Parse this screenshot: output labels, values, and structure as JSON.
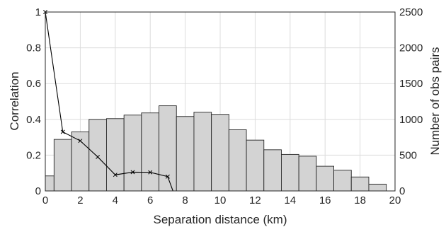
{
  "chart_data": {
    "type": "bar+line",
    "xlabel": "Separation distance (km)",
    "ylabel_left": "Correlation",
    "ylabel_right": "Number of obs pairs",
    "xlim": [
      0,
      20
    ],
    "ylim_left": [
      0,
      1
    ],
    "ylim_right": [
      0,
      2500
    ],
    "xticks": [
      0,
      2,
      4,
      6,
      8,
      10,
      12,
      14,
      16,
      18,
      20
    ],
    "yticks_left": [
      0,
      0.2,
      0.4,
      0.6,
      0.8,
      1
    ],
    "yticks_right": [
      0,
      500,
      1000,
      1500,
      2000,
      2500
    ],
    "grid": true,
    "bars": {
      "axis": "right",
      "bin_width": 1,
      "bin_centers": [
        0,
        1,
        2,
        3,
        4,
        5,
        6,
        7,
        8,
        9,
        10,
        11,
        12,
        13,
        14,
        15,
        16,
        17,
        18,
        19
      ],
      "values": [
        210,
        720,
        825,
        1000,
        1010,
        1060,
        1090,
        1190,
        1040,
        1100,
        1070,
        855,
        710,
        575,
        510,
        485,
        345,
        290,
        195,
        95
      ]
    },
    "line": {
      "axis": "left",
      "marker": "x",
      "x": [
        0,
        1,
        2,
        3,
        4,
        5,
        6,
        7,
        7.3
      ],
      "y": [
        1.0,
        0.33,
        0.28,
        0.19,
        0.09,
        0.105,
        0.104,
        0.08,
        0.0
      ]
    }
  }
}
